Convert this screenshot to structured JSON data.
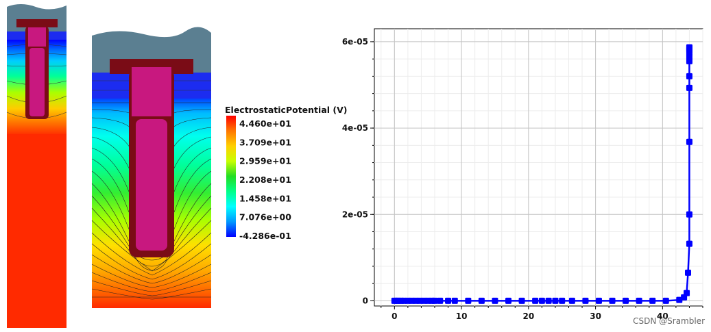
{
  "colors": {
    "nitride": "#5b7f91",
    "oxide": "#1c2cf0",
    "gate_border": "#7a0c16",
    "poly_fill": "#c8187f",
    "curve": "#0000ff",
    "background_red": "#ff2a00"
  },
  "colorbar": {
    "title": "ElectrostaticPotential (V)",
    "labels": [
      "4.460e+01",
      "3.709e+01",
      "2.959e+01",
      "2.208e+01",
      "1.458e+01",
      "7.076e+00",
      "-4.286e-01"
    ],
    "gradient_colors": [
      "#ff0000",
      "#ff7700",
      "#ffd000",
      "#c8ff00",
      "#22dd22",
      "#00ff88",
      "#00ffff",
      "#0099ff",
      "#0000ff"
    ]
  },
  "chart_data": {
    "type": "line",
    "xlim": [
      -3,
      46
    ],
    "ylim": [
      -1.2e-06,
      6.3e-05
    ],
    "x_ticks": [
      0,
      10,
      20,
      30,
      40
    ],
    "x_tick_labels": [
      "0",
      "10",
      "20",
      "30",
      "40"
    ],
    "y_ticks": [
      0,
      2e-05,
      4e-05,
      6e-05
    ],
    "y_tick_labels": [
      "0",
      "2e-05",
      "4e-05",
      "6e-05"
    ],
    "grid": true,
    "series": [
      {
        "x": [
          0,
          0.3,
          0.6,
          1.0,
          1.4,
          2.0,
          2.6,
          3.2,
          3.8,
          4.4,
          5.0,
          5.6,
          6.0,
          6.8,
          8.0,
          9.0,
          11,
          13,
          15,
          17,
          19,
          21,
          22,
          23,
          24,
          25,
          26.5,
          28.5,
          30.5,
          32.5,
          34.5,
          36.5,
          38.5,
          40.5,
          42.5,
          43.2,
          43.6,
          43.8,
          44.0,
          44.0,
          44.0,
          44.0,
          44.0,
          44.0,
          44.0,
          44.0,
          44.0,
          44.0,
          44.0,
          44.0
        ],
        "y": [
          0,
          0,
          0,
          0,
          0,
          0,
          0,
          0,
          0,
          0,
          0,
          0,
          0,
          0,
          0,
          0,
          0,
          0,
          0,
          0,
          0,
          0,
          0,
          0,
          0,
          0,
          0,
          0,
          0,
          0,
          0,
          0,
          0,
          0,
          2e-07,
          8e-07,
          1.8e-06,
          6.5e-06,
          1.32e-05,
          2e-05,
          3.68e-05,
          4.93e-05,
          5.2e-05,
          5.55e-05,
          5.65e-05,
          5.75e-05,
          5.8e-05,
          5.83e-05,
          5.85e-05,
          5.87e-05
        ]
      }
    ]
  },
  "watermark": "CSDN @Srambler"
}
